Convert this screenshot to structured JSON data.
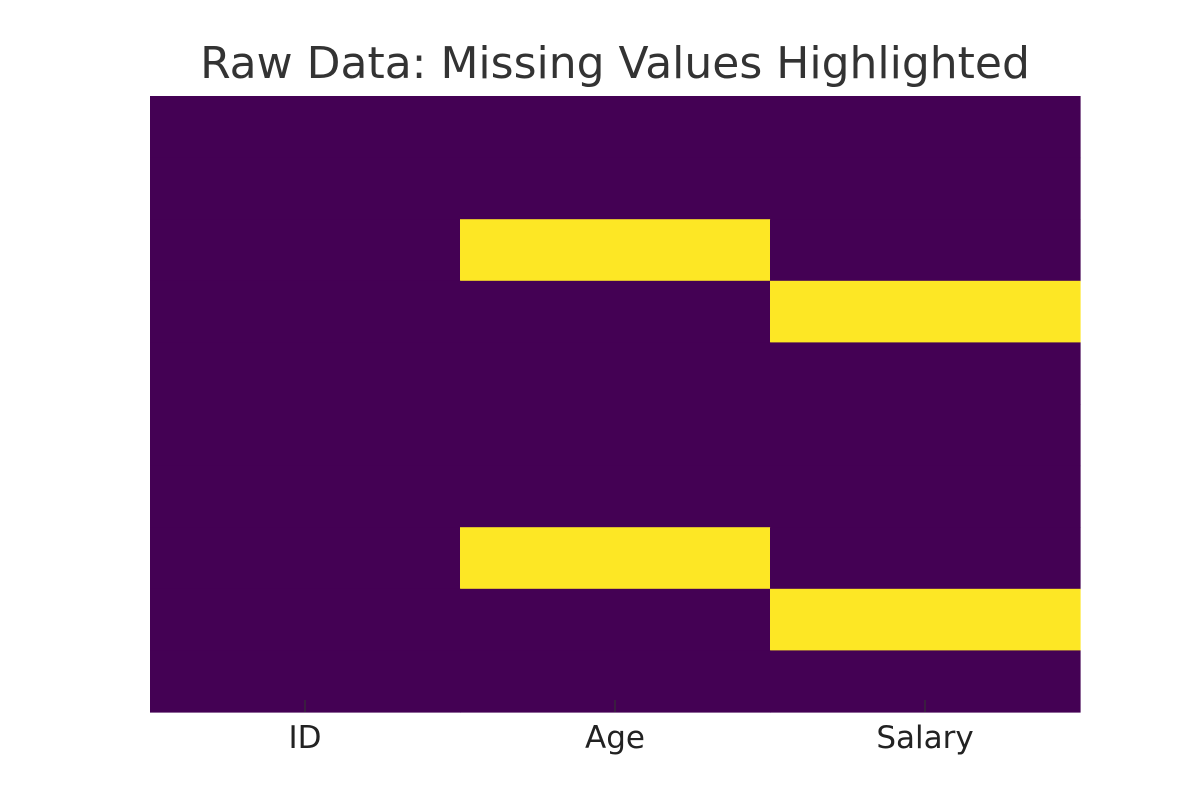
{
  "chart_data": {
    "type": "heatmap",
    "title": "Raw Data: Missing Values Highlighted",
    "columns": [
      "ID",
      "Age",
      "Salary"
    ],
    "row_count": 10,
    "missing": [
      [
        false,
        false,
        false
      ],
      [
        false,
        false,
        false
      ],
      [
        false,
        true,
        false
      ],
      [
        false,
        false,
        true
      ],
      [
        false,
        false,
        false
      ],
      [
        false,
        false,
        false
      ],
      [
        false,
        false,
        false
      ],
      [
        false,
        true,
        false
      ],
      [
        false,
        false,
        true
      ],
      [
        false,
        false,
        false
      ]
    ],
    "colors": {
      "present": "#440154",
      "missing": "#fde725",
      "tick": "#333333"
    },
    "ylabel": "",
    "xlabel": "",
    "y_ticks_visible": false,
    "colorbar": false
  }
}
